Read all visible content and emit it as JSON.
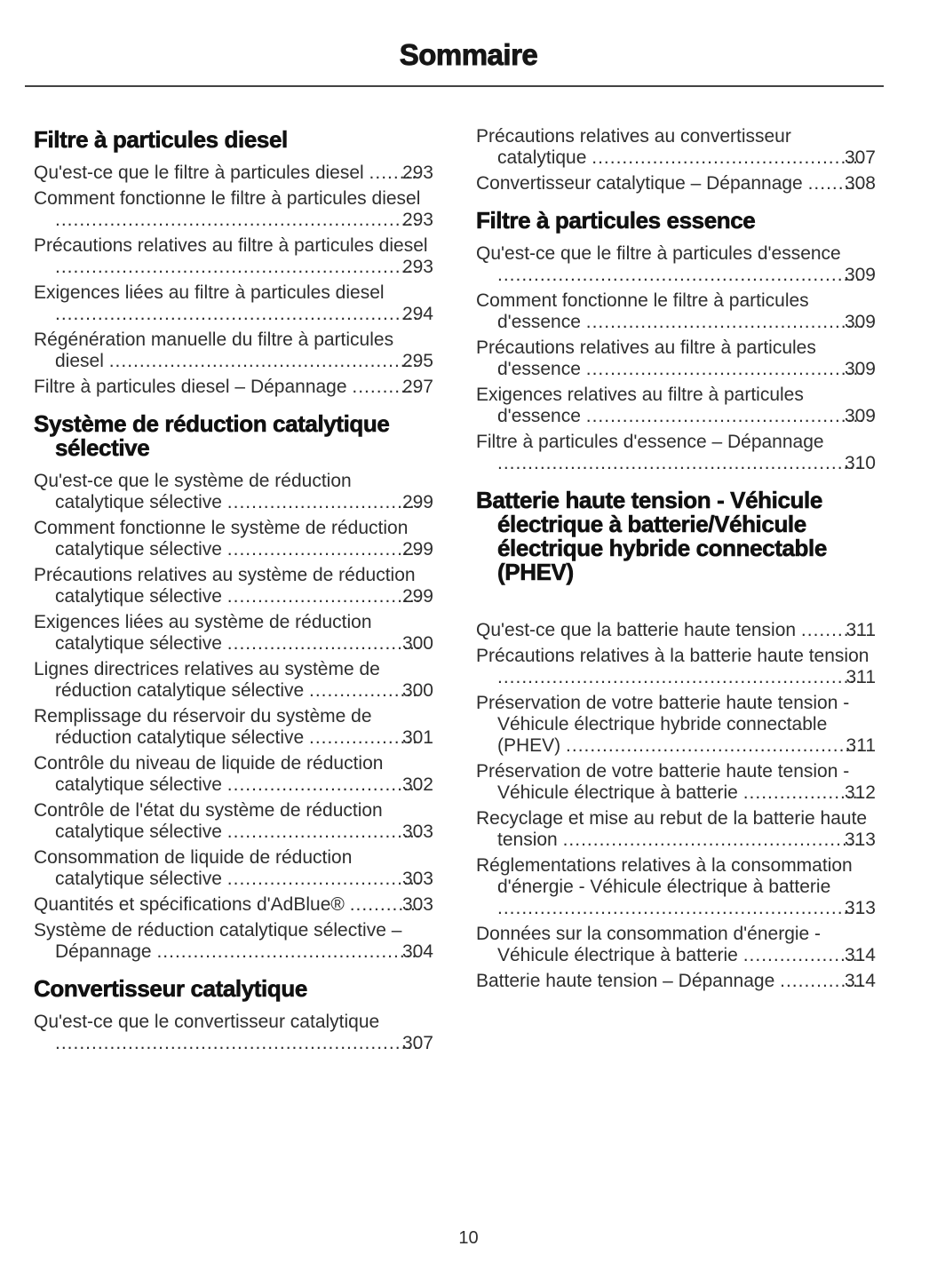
{
  "page": {
    "title": "Sommaire",
    "page_number": "10"
  },
  "colors": {
    "text": "#2e2e2e",
    "heading": "#111111",
    "rule": "#424242",
    "background": "#ffffff"
  },
  "columns": [
    {
      "sections": [
        {
          "heading": "Filtre à particules diesel",
          "entries": [
            {
              "text": "Qu'est-ce que le filtre à particules diesel",
              "page": "293"
            },
            {
              "text": "Comment fonctionne le filtre à particules diesel",
              "page": "293"
            },
            {
              "text": "Précautions relatives au filtre à particules diesel",
              "page": "293"
            },
            {
              "text": "Exigences liées au filtre à particules diesel",
              "page": "294"
            },
            {
              "text": "Régénération manuelle du filtre à particules diesel",
              "page": "295"
            },
            {
              "text": "Filtre à particules diesel – Dépannage",
              "page": "297"
            }
          ]
        },
        {
          "heading": "Système de réduction catalytique sélective",
          "entries": [
            {
              "text": "Qu'est-ce que le système de réduction catalytique sélective",
              "page": "299"
            },
            {
              "text": "Comment fonctionne le système de réduction catalytique sélective",
              "page": "299"
            },
            {
              "text": "Précautions relatives au système de réduction catalytique sélective",
              "page": "299"
            },
            {
              "text": "Exigences liées au système de réduction catalytique sélective",
              "page": "300"
            },
            {
              "text": "Lignes directrices relatives au système de réduction catalytique sélective",
              "page": "300"
            },
            {
              "text": "Remplissage du réservoir du système de réduction catalytique sélective",
              "page": "301"
            },
            {
              "text": "Contrôle du niveau de liquide de réduction catalytique sélective",
              "page": "302"
            },
            {
              "text": "Contrôle de l'état du système de réduction catalytique sélective",
              "page": "303"
            },
            {
              "text": "Consommation de liquide de réduction catalytique sélective",
              "page": "303"
            },
            {
              "text": "Quantités et spécifications d'AdBlue®",
              "page": "303"
            },
            {
              "text": "Système de réduction catalytique sélective – Dépannage",
              "page": "304"
            }
          ]
        },
        {
          "heading": "Convertisseur catalytique",
          "entries": [
            {
              "text": "Qu'est-ce que le convertisseur catalytique",
              "page": "307"
            }
          ]
        }
      ]
    },
    {
      "sections": [
        {
          "heading": null,
          "entries": [
            {
              "text": "Précautions relatives au convertisseur catalytique",
              "page": "307"
            },
            {
              "text": "Convertisseur catalytique – Dépannage",
              "page": "308"
            }
          ]
        },
        {
          "heading": "Filtre à particules essence",
          "entries": [
            {
              "text": "Qu'est-ce que le filtre à particules d'essence",
              "page": "309"
            },
            {
              "text": "Comment fonctionne le filtre à particules d'essence",
              "page": "309"
            },
            {
              "text": "Précautions relatives au filtre à particules d'essence",
              "page": "309"
            },
            {
              "text": "Exigences relatives au filtre à particules d'essence",
              "page": "309"
            },
            {
              "text": "Filtre à particules d'essence – Dépannage",
              "page": "310"
            }
          ]
        },
        {
          "heading": "Batterie haute tension - Véhicule électrique à batterie/Véhicule électrique hybride connectable (PHEV)",
          "gap_after_heading": true,
          "entries": [
            {
              "text": "Qu'est-ce que la batterie haute tension",
              "page": "311"
            },
            {
              "text": "Précautions relatives à la batterie haute tension",
              "page": "311"
            },
            {
              "text": "Préservation de votre batterie haute tension - Véhicule électrique hybride connectable (PHEV)",
              "page": "311"
            },
            {
              "text": "Préservation de votre batterie haute tension - Véhicule électrique à batterie",
              "page": "312"
            },
            {
              "text": "Recyclage et mise au rebut de la batterie haute tension",
              "page": "313"
            },
            {
              "text": "Réglementations relatives à la consommation d'énergie - Véhicule électrique à batterie",
              "page": "313"
            },
            {
              "text": "Données sur la consommation d'énergie - Véhicule électrique à batterie",
              "page": "314"
            },
            {
              "text": "Batterie haute tension – Dépannage",
              "page": "314"
            }
          ]
        }
      ]
    }
  ]
}
